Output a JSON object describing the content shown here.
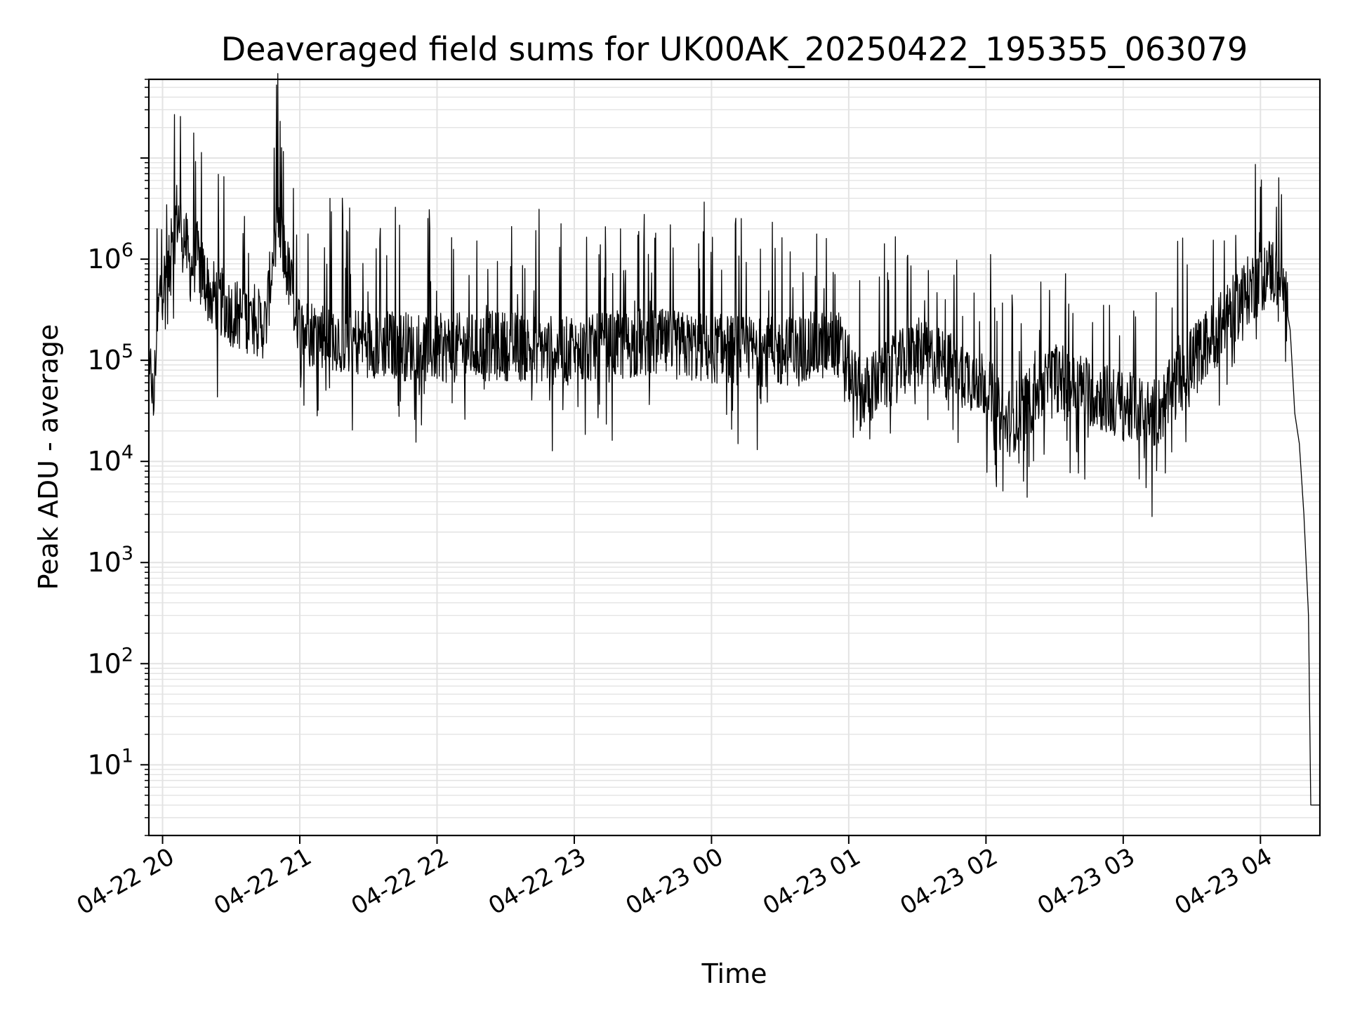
{
  "chart_data": {
    "type": "line",
    "title": "Deaveraged field sums for UK00AK_20250422_195355_063079",
    "xlabel": "Time",
    "ylabel": "Peak ADU - average",
    "yscale": "log",
    "ylim": [
      2,
      60000000
    ],
    "xlim": [
      "2025-04-22 19:54",
      "2025-04-23 04:26"
    ],
    "grid": true,
    "line_color": "#000000",
    "grid_color": "#e3e3e3",
    "x_ticks": [
      "04-22 20",
      "04-22 21",
      "04-22 22",
      "04-22 23",
      "04-23 00",
      "04-23 01",
      "04-23 02",
      "04-23 03",
      "04-23 04"
    ],
    "y_ticks": [
      {
        "base": "10",
        "exp": "1",
        "value": 10
      },
      {
        "base": "10",
        "exp": "2",
        "value": 100
      },
      {
        "base": "10",
        "exp": "3",
        "value": 1000
      },
      {
        "base": "10",
        "exp": "4",
        "value": 10000
      },
      {
        "base": "10",
        "exp": "5",
        "value": 100000
      },
      {
        "base": "10",
        "exp": "6",
        "value": 1000000
      }
    ],
    "series": [
      {
        "values": [
          [
            "2025-04-22 19:54",
            40000
          ],
          [
            "2025-04-22 19:55",
            90000
          ],
          [
            "2025-04-22 19:56",
            30000
          ],
          [
            "2025-04-22 19:57",
            120000
          ],
          [
            "2025-04-22 19:58",
            250000
          ],
          [
            "2025-04-22 19:59",
            500000
          ],
          [
            "2025-04-22 20:02",
            700000
          ],
          [
            "2025-04-22 20:04",
            900000
          ],
          [
            "2025-04-22 20:06",
            2800000
          ],
          [
            "2025-04-22 20:09",
            2000000
          ],
          [
            "2025-04-22 20:12",
            800000
          ],
          [
            "2025-04-22 20:15",
            1100000
          ],
          [
            "2025-04-22 20:20",
            500000
          ],
          [
            "2025-04-22 20:30",
            300000
          ],
          [
            "2025-04-22 20:45",
            220000
          ],
          [
            "2025-04-22 20:50",
            2500000
          ],
          [
            "2025-04-22 21:00",
            200000
          ],
          [
            "2025-04-22 21:30",
            150000
          ],
          [
            "2025-04-22 22:00",
            130000
          ],
          [
            "2025-04-22 22:30",
            140000
          ],
          [
            "2025-04-22 23:00",
            120000
          ],
          [
            "2025-04-22 23:30",
            150000
          ],
          [
            "2025-04-23 00:00",
            130000
          ],
          [
            "2025-04-23 00:30",
            120000
          ],
          [
            "2025-04-23 00:55",
            150000
          ],
          [
            "2025-04-23 01:05",
            45000
          ],
          [
            "2025-04-23 01:30",
            120000
          ],
          [
            "2025-04-23 02:00",
            60000
          ],
          [
            "2025-04-23 02:08",
            22000
          ],
          [
            "2025-04-23 02:30",
            70000
          ],
          [
            "2025-04-23 03:00",
            35000
          ],
          [
            "2025-04-23 03:15",
            30000
          ],
          [
            "2025-04-23 03:30",
            100000
          ],
          [
            "2025-04-23 03:40",
            180000
          ],
          [
            "2025-04-23 03:55",
            500000
          ],
          [
            "2025-04-23 04:05",
            800000
          ],
          [
            "2025-04-23 04:10",
            500000
          ],
          [
            "2025-04-23 04:13",
            200000
          ],
          [
            "2025-04-23 04:15",
            30000
          ],
          [
            "2025-04-23 04:17",
            15000
          ],
          [
            "2025-04-23 04:19",
            3000
          ],
          [
            "2025-04-23 04:21",
            300
          ],
          [
            "2025-04-23 04:22",
            4
          ],
          [
            "2025-04-23 04:26",
            4
          ]
        ]
      }
    ]
  }
}
